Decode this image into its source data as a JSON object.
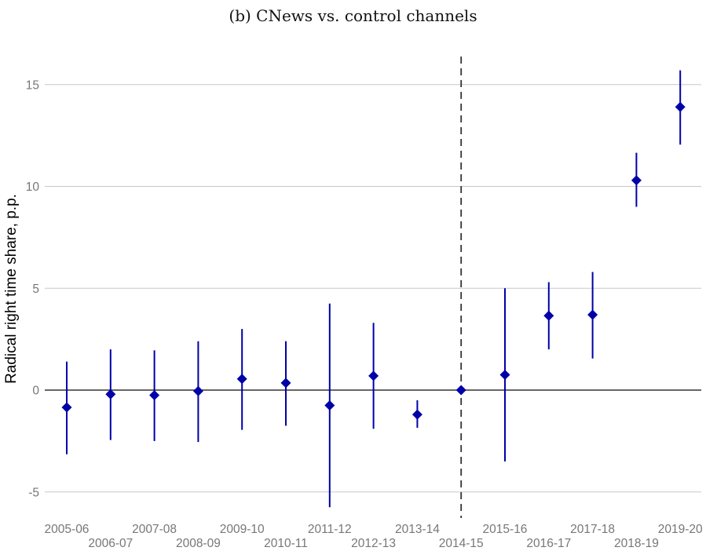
{
  "chart_data": {
    "type": "scatter",
    "title": "(b) CNews vs. control channels",
    "ylabel": "Radical right time share, p.p.",
    "xlabel": "",
    "ylim": [
      -6.2,
      16.3
    ],
    "yticks": [
      -5,
      0,
      5,
      10,
      15
    ],
    "ytick_labels": [
      "-5",
      "0",
      "5",
      "10",
      "15"
    ],
    "grid": true,
    "reference_line_y": 0,
    "event_marker": "2014-15",
    "marker_color": "#0000a8",
    "categories": [
      "2005-06",
      "2006-07",
      "2007-08",
      "2008-09",
      "2009-10",
      "2010-11",
      "2011-12",
      "2012-13",
      "2013-14",
      "2014-15",
      "2015-16",
      "2016-17",
      "2017-18",
      "2018-19",
      "2019-20"
    ],
    "series": [
      {
        "values": [
          -0.85,
          -0.2,
          -0.25,
          -0.05,
          0.55,
          0.35,
          -0.75,
          0.7,
          -1.2,
          0.0,
          0.75,
          3.65,
          3.7,
          10.3,
          13.9
        ],
        "ci_low": [
          -3.15,
          -2.45,
          -2.5,
          -2.55,
          -1.95,
          -1.75,
          -5.75,
          -1.9,
          -1.85,
          0.0,
          -3.5,
          2.0,
          1.55,
          9.0,
          12.05
        ],
        "ci_high": [
          1.4,
          2.0,
          1.95,
          2.4,
          3.0,
          2.4,
          4.25,
          3.3,
          -0.5,
          0.0,
          5.0,
          5.3,
          5.8,
          11.65,
          15.7
        ]
      }
    ]
  }
}
